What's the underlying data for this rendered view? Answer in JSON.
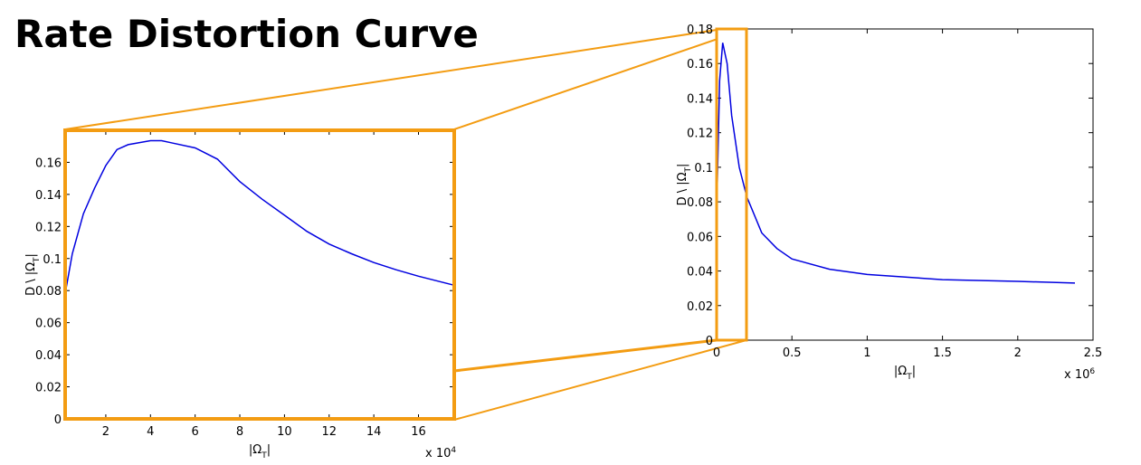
{
  "title": "Rate Distortion Curve",
  "chart_data": [
    {
      "type": "line",
      "color": "#0000e0",
      "x": [
        0.18,
        0.5,
        1,
        1.5,
        2,
        2.5,
        3,
        4,
        4.5,
        5,
        6,
        7,
        8,
        9,
        10,
        11,
        12,
        13,
        14,
        15,
        16,
        17.58
      ],
      "values": [
        0.078,
        0.103,
        0.128,
        0.144,
        0.158,
        0.168,
        0.171,
        0.1735,
        0.1735,
        0.172,
        0.169,
        0.162,
        0.148,
        0.137,
        0.127,
        0.117,
        0.109,
        0.103,
        0.0975,
        0.093,
        0.089,
        0.0834
      ],
      "xlim": [
        0.18,
        17.6
      ],
      "ylim": [
        0,
        0.18
      ],
      "xticks": [
        2,
        4,
        6,
        8,
        10,
        12,
        14,
        16
      ],
      "yticks": [
        0,
        0.02,
        0.04,
        0.06,
        0.08,
        0.1,
        0.12,
        0.14,
        0.16
      ],
      "xlabel": [
        "|Ω",
        "T",
        "|"
      ],
      "ylabel": [
        "D \\ |Ω",
        "T",
        "|"
      ],
      "x_multiplier": [
        "x 10",
        "4"
      ]
    },
    {
      "type": "line",
      "color": "#0000e0",
      "x": [
        0.002,
        0.02,
        0.04,
        0.07,
        0.1,
        0.15,
        0.2,
        0.3,
        0.4,
        0.5,
        0.75,
        1,
        1.5,
        2,
        2.38
      ],
      "values": [
        0.08,
        0.15,
        0.172,
        0.16,
        0.13,
        0.1,
        0.083,
        0.062,
        0.053,
        0.047,
        0.041,
        0.038,
        0.035,
        0.034,
        0.033
      ],
      "xlim": [
        0,
        2.5
      ],
      "ylim": [
        0,
        0.18
      ],
      "xticks": [
        0,
        0.5,
        1,
        1.5,
        2,
        2.5
      ],
      "yticks": [
        0,
        0.02,
        0.04,
        0.06,
        0.08,
        0.1,
        0.12,
        0.14,
        0.16,
        0.18
      ],
      "xlabel": [
        "|Ω",
        "T",
        "|"
      ],
      "ylabel": [
        "D \\ |Ω",
        "T",
        "|"
      ],
      "x_multiplier": [
        "x 10",
        "6"
      ]
    }
  ]
}
